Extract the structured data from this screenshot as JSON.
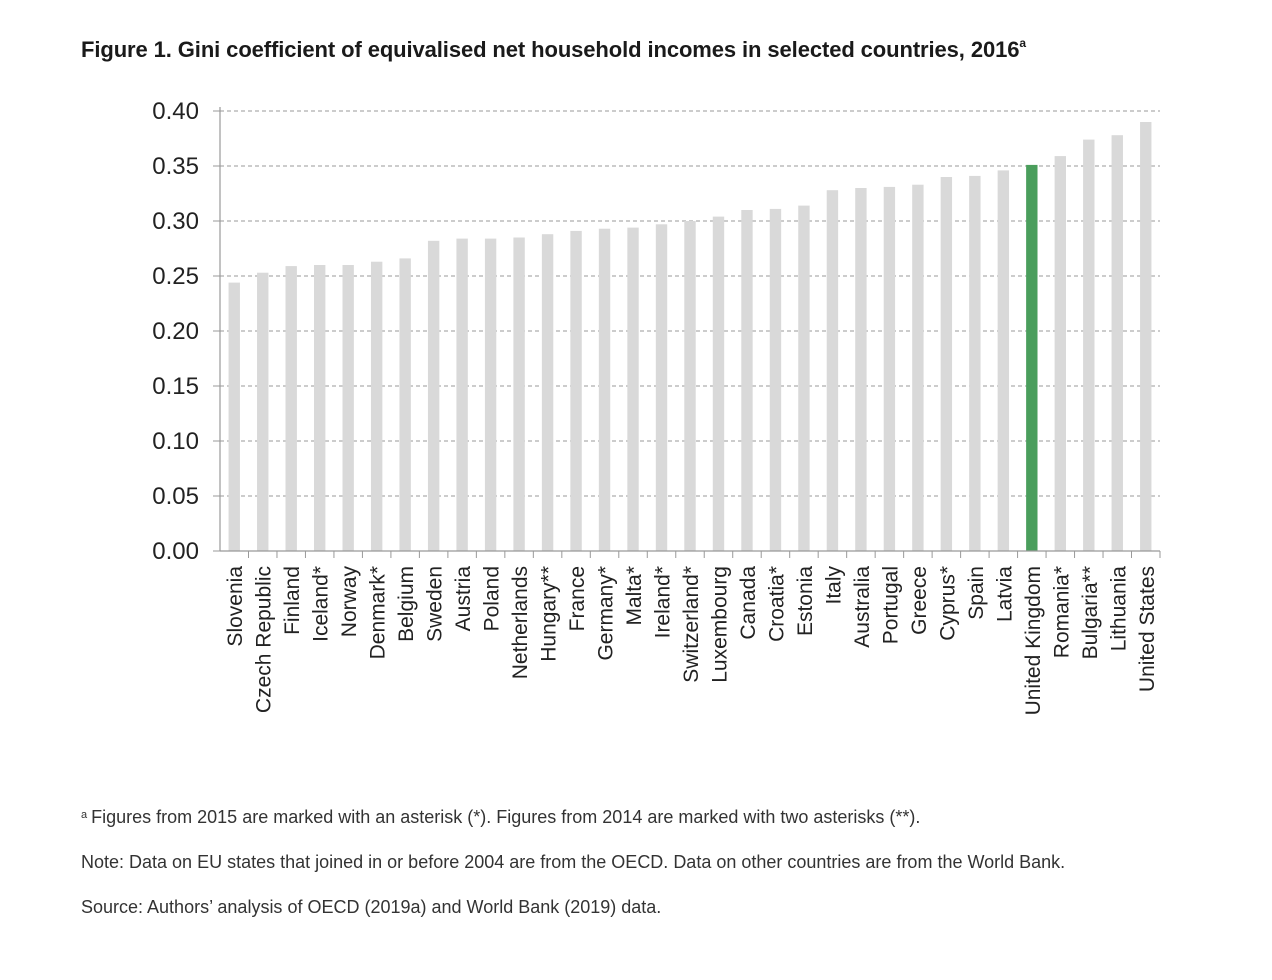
{
  "title": "Figure 1. Gini coefficient of equivalised net household incomes in selected countries, 2016",
  "title_superscript": "a",
  "chart_data": {
    "type": "bar",
    "title": "Figure 1. Gini coefficient of equivalised net household incomes in selected countries, 2016",
    "xlabel": "",
    "ylabel": "",
    "ylim": [
      0,
      0.4
    ],
    "yticks": [
      "0.00",
      "0.05",
      "0.10",
      "0.15",
      "0.20",
      "0.25",
      "0.30",
      "0.35",
      "0.40"
    ],
    "grid": "horizontal dashed",
    "categories": [
      "Slovenia",
      "Czech Republic",
      "Finland",
      "Iceland*",
      "Norway",
      "Denmark*",
      "Belgium",
      "Sweden",
      "Austria",
      "Poland",
      "Netherlands",
      "Hungary**",
      "France",
      "Germany*",
      "Malta*",
      "Ireland*",
      "Switzerland*",
      "Luxembourg",
      "Canada",
      "Croatia*",
      "Estonia",
      "Italy",
      "Australia",
      "Portugal",
      "Greece",
      "Cyprus*",
      "Spain",
      "Latvia",
      "United Kingdom",
      "Romania*",
      "Bulgaria**",
      "Lithuania",
      "United States"
    ],
    "values": [
      0.244,
      0.253,
      0.259,
      0.26,
      0.26,
      0.263,
      0.266,
      0.282,
      0.284,
      0.284,
      0.285,
      0.288,
      0.291,
      0.293,
      0.294,
      0.297,
      0.3,
      0.304,
      0.31,
      0.311,
      0.314,
      0.328,
      0.33,
      0.331,
      0.333,
      0.34,
      0.341,
      0.346,
      0.351,
      0.359,
      0.374,
      0.378,
      0.39
    ],
    "highlight": "United Kingdom",
    "colors": {
      "bar": "#d9d9d9",
      "highlight": "#4a9e5c",
      "grid": "#999999",
      "axis": "#999999"
    }
  },
  "notes": {
    "footnote_marker": "a",
    "footnote": "Figures from 2015 are marked with an asterisk (*). Figures from 2014 are marked with two asterisks (**).",
    "note": "Note: Data on EU states that joined in or before 2004 are from the OECD. Data on other countries are from the World Bank.",
    "source": "Source: Authors’ analysis of OECD (2019a) and World Bank (2019) data."
  }
}
